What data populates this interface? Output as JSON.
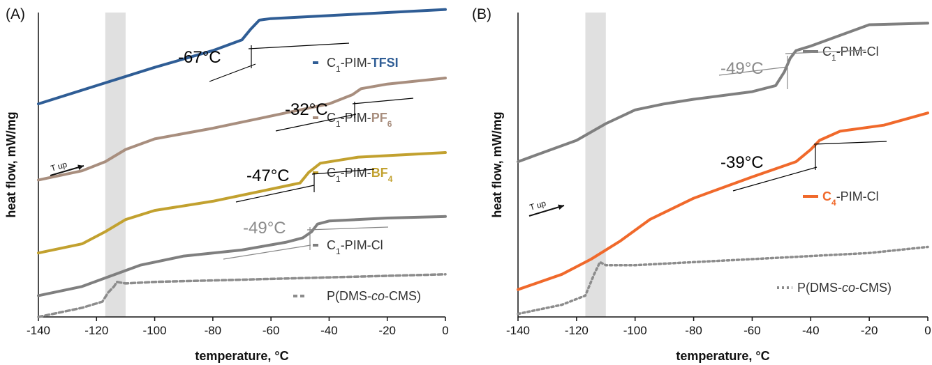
{
  "chart_data": [
    {
      "type": "line",
      "panel_label": "(A)",
      "xlabel": "temperature, °C",
      "ylabel": "heat flow, mW/mg",
      "xlim": [
        -140,
        0
      ],
      "ylim": [
        0,
        100
      ],
      "xticks": [
        "-140",
        "-120",
        "-100",
        "-80",
        "-60",
        "-40",
        "-20",
        "0"
      ],
      "shaded_band": [
        -117,
        -110
      ],
      "arrow_label": "T up",
      "series": [
        {
          "name": "C1-PIM-TFSI",
          "legend_parts": [
            [
              "C",
              ""
            ],
            [
              "1",
              "sub"
            ],
            [
              "-PIM-",
              ""
            ],
            [
              "TFSI",
              "bold"
            ]
          ],
          "color": "#2f5d95",
          "dash": "",
          "x": [
            -140,
            -120,
            -100,
            -80,
            -70,
            -67,
            -64,
            -60,
            -40,
            -20,
            0
          ],
          "y": [
            70,
            76,
            82,
            87.5,
            91,
            94.5,
            97.5,
            98,
            99,
            100,
            101
          ]
        },
        {
          "name": "C1-PIM-PF6",
          "legend_parts": [
            [
              "C",
              ""
            ],
            [
              "1",
              "sub"
            ],
            [
              "-PIM-",
              ""
            ],
            [
              "PF",
              "bold"
            ],
            [
              "6",
              "boldsub"
            ]
          ],
          "color": "#a88e7e",
          "dash": "",
          "x": [
            -140,
            -125,
            -117,
            -110,
            -100,
            -80,
            -60,
            -40,
            -32,
            -29,
            -20,
            0
          ],
          "y": [
            45,
            48,
            51,
            55,
            58.5,
            62,
            66,
            70,
            73,
            75,
            76.5,
            78.5
          ]
        },
        {
          "name": "C1-PIM-BF4",
          "legend_parts": [
            [
              "C",
              ""
            ],
            [
              "1",
              "sub"
            ],
            [
              "-PIM-",
              ""
            ],
            [
              "BF",
              "bold"
            ],
            [
              "4",
              "boldsub"
            ]
          ],
          "color": "#c2a12f",
          "dash": "",
          "x": [
            -140,
            -125,
            -117,
            -110,
            -100,
            -80,
            -60,
            -50,
            -47,
            -43,
            -30,
            0
          ],
          "y": [
            21,
            24,
            28,
            32,
            35,
            38,
            42,
            44,
            47.5,
            50.5,
            52.5,
            54
          ]
        },
        {
          "name": "C1-PIM-Cl",
          "legend_parts": [
            [
              "C",
              ""
            ],
            [
              "1",
              "sub"
            ],
            [
              "-PIM-",
              ""
            ],
            [
              "Cl",
              ""
            ]
          ],
          "color": "#7f7f7f",
          "dash": "",
          "x": [
            -140,
            -125,
            -115,
            -105,
            -90,
            -70,
            -55,
            -49,
            -46,
            -44,
            -40,
            -20,
            0
          ],
          "y": [
            7,
            10,
            13.5,
            17,
            20,
            22,
            24.5,
            26,
            28,
            30.5,
            31.5,
            32.5,
            33
          ]
        },
        {
          "name": "P(DMS-co-CMS)",
          "legend_parts": [
            [
              "P(DMS-",
              ""
            ],
            [
              "co",
              "italic"
            ],
            [
              "-CMS)",
              ""
            ]
          ],
          "color": "#8c8c8c",
          "dash": "6,4",
          "x": [
            -140,
            -125,
            -118,
            -116,
            -114,
            -113,
            -110,
            -100,
            -80,
            -60,
            -40,
            -20,
            0
          ],
          "y": [
            0,
            3,
            5,
            8,
            10,
            11.5,
            11,
            11.5,
            12,
            12.5,
            13,
            13.5,
            14
          ]
        }
      ],
      "annotations": [
        {
          "text": "-67°C",
          "color": "#000000"
        },
        {
          "text": "-32°C",
          "color": "#000000"
        },
        {
          "text": "-47°C",
          "color": "#000000"
        },
        {
          "text": "-49°C",
          "color": "#8a8a8a"
        }
      ]
    },
    {
      "type": "line",
      "panel_label": "(B)",
      "xlabel": "temperature, °C",
      "ylabel": "heat flow, mW/mg",
      "xlim": [
        -140,
        0
      ],
      "ylim": [
        0,
        100
      ],
      "xticks": [
        "-140",
        "-120",
        "-100",
        "-80",
        "-60",
        "-40",
        "-20",
        "0"
      ],
      "shaded_band": [
        -117,
        -110
      ],
      "arrow_label": "T up",
      "series": [
        {
          "name": "C1-PIM-Cl",
          "legend_parts": [
            [
              "C",
              ""
            ],
            [
              "1",
              "sub"
            ],
            [
              "-PIM-Cl",
              ""
            ]
          ],
          "color": "#7f7f7f",
          "dash": "",
          "x": [
            -140,
            -120,
            -110,
            -100,
            -90,
            -80,
            -60,
            -52,
            -49,
            -47,
            -45,
            -40,
            -20,
            0
          ],
          "y": [
            51,
            58,
            63.5,
            68,
            70,
            71.5,
            74,
            76,
            80.5,
            85,
            87.5,
            89,
            96,
            96.5
          ]
        },
        {
          "name": "C4-PIM-Cl",
          "legend_parts": [
            [
              "C",
              "bold"
            ],
            [
              "4",
              "boldsub"
            ],
            [
              "-PIM-Cl",
              ""
            ]
          ],
          "color": "#f0692b",
          "dash": "",
          "x": [
            -140,
            -125,
            -115,
            -105,
            -95,
            -80,
            -60,
            -45,
            -40,
            -37,
            -30,
            -15,
            0
          ],
          "y": [
            9,
            14,
            19,
            25,
            32,
            39,
            46,
            51,
            55,
            58,
            61,
            63,
            67
          ]
        },
        {
          "name": "P(DMS-co-CMS)",
          "legend_parts": [
            [
              "P(DMS-",
              ""
            ],
            [
              "co",
              "italic"
            ],
            [
              "-CMS)",
              ""
            ]
          ],
          "color": "#8c8c8c",
          "dash": "3,4",
          "x": [
            -140,
            -125,
            -117,
            -114,
            -112,
            -110,
            -100,
            -80,
            -60,
            -40,
            -20,
            0
          ],
          "y": [
            1,
            4,
            7,
            14,
            18,
            17,
            17,
            18,
            19,
            20,
            21,
            23
          ]
        }
      ],
      "annotations": [
        {
          "text": "-49°C",
          "color": "#8a8a8a"
        },
        {
          "text": "-39°C",
          "color": "#000000"
        }
      ]
    }
  ]
}
